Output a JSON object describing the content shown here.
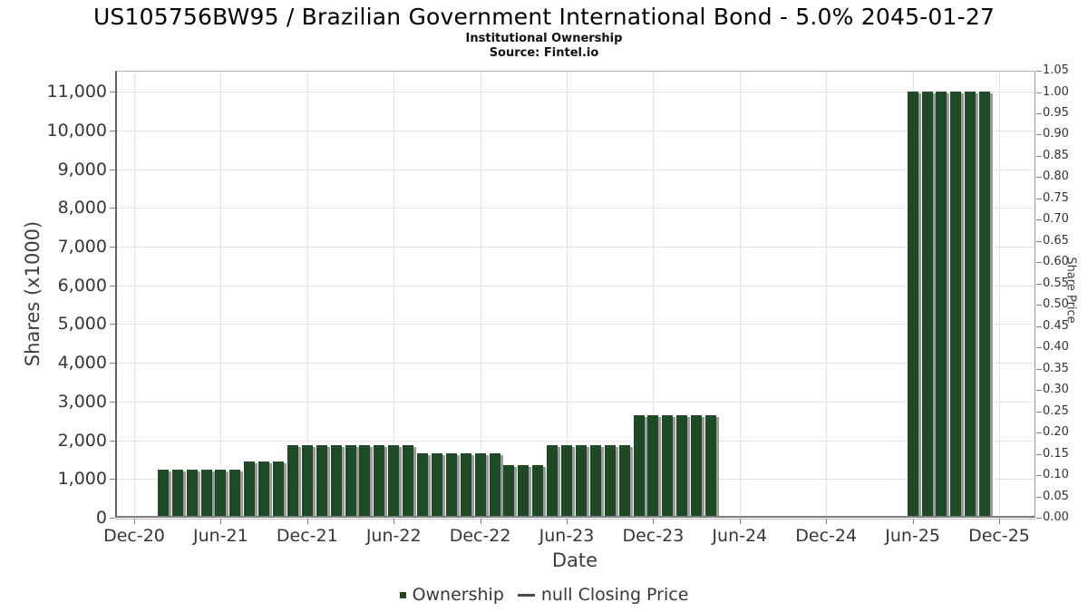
{
  "chart_data": {
    "type": "bar",
    "title": "US105756BW95 / Brazilian Government International Bond - 5.0% 2045-01-27",
    "subtitle": "Institutional Ownership",
    "source": "Source: Fintel.io",
    "xlabel": "Date",
    "ylabel_left": "Shares (x1000)",
    "ylabel_right": "Share Price",
    "x_tick_labels": [
      "Dec-20",
      "Jun-21",
      "Dec-21",
      "Jun-22",
      "Dec-22",
      "Jun-23",
      "Dec-23",
      "Jun-24",
      "Dec-24",
      "Jun-25",
      "Dec-25"
    ],
    "y_left_axis": {
      "min": 0,
      "max": 11000,
      "step": 1000,
      "gridlines": true
    },
    "y_right_axis": {
      "min": 0.0,
      "max": 1.05,
      "step": 0.05
    },
    "bar_color": "#1e4a26",
    "bar_shadow_color": "#9a9a9a",
    "legend_position": "bottom",
    "series": [
      {
        "name": "Ownership",
        "type": "bar",
        "unit": "shares x1000",
        "points": [
          {
            "month": "Feb-21",
            "shares": 1250
          },
          {
            "month": "Mar-21",
            "shares": 1250
          },
          {
            "month": "Apr-21",
            "shares": 1250
          },
          {
            "month": "May-21",
            "shares": 1250
          },
          {
            "month": "Jun-21",
            "shares": 1250
          },
          {
            "month": "Jul-21",
            "shares": 1250
          },
          {
            "month": "Aug-21",
            "shares": 1460
          },
          {
            "month": "Sep-21",
            "shares": 1460
          },
          {
            "month": "Oct-21",
            "shares": 1460
          },
          {
            "month": "Nov-21",
            "shares": 1870
          },
          {
            "month": "Dec-21",
            "shares": 1870
          },
          {
            "month": "Jan-22",
            "shares": 1870
          },
          {
            "month": "Feb-22",
            "shares": 1870
          },
          {
            "month": "Mar-22",
            "shares": 1870
          },
          {
            "month": "Apr-22",
            "shares": 1870
          },
          {
            "month": "May-22",
            "shares": 1870
          },
          {
            "month": "Jun-22",
            "shares": 1870
          },
          {
            "month": "Jul-22",
            "shares": 1870
          },
          {
            "month": "Aug-22",
            "shares": 1670
          },
          {
            "month": "Sep-22",
            "shares": 1670
          },
          {
            "month": "Oct-22",
            "shares": 1670
          },
          {
            "month": "Nov-22",
            "shares": 1670
          },
          {
            "month": "Dec-22",
            "shares": 1670
          },
          {
            "month": "Jan-23",
            "shares": 1670
          },
          {
            "month": "Feb-23",
            "shares": 1370
          },
          {
            "month": "Mar-23",
            "shares": 1370
          },
          {
            "month": "Apr-23",
            "shares": 1370
          },
          {
            "month": "May-23",
            "shares": 1870
          },
          {
            "month": "Jun-23",
            "shares": 1870
          },
          {
            "month": "Jul-23",
            "shares": 1870
          },
          {
            "month": "Aug-23",
            "shares": 1870
          },
          {
            "month": "Sep-23",
            "shares": 1870
          },
          {
            "month": "Oct-23",
            "shares": 1870
          },
          {
            "month": "Nov-23",
            "shares": 2640
          },
          {
            "month": "Dec-23",
            "shares": 2640
          },
          {
            "month": "Jan-24",
            "shares": 2640
          },
          {
            "month": "Feb-24",
            "shares": 2640
          },
          {
            "month": "Mar-24",
            "shares": 2640
          },
          {
            "month": "Apr-24",
            "shares": 2640
          },
          {
            "month": "Jun-25",
            "shares": 10990
          },
          {
            "month": "Jul-25",
            "shares": 10990
          },
          {
            "month": "Aug-25",
            "shares": 10990
          },
          {
            "month": "Sep-25",
            "shares": 10990
          },
          {
            "month": "Oct-25",
            "shares": 10990
          },
          {
            "month": "Nov-25",
            "shares": 10990
          }
        ]
      },
      {
        "name": "null Closing Price",
        "type": "line",
        "points": []
      }
    ]
  }
}
